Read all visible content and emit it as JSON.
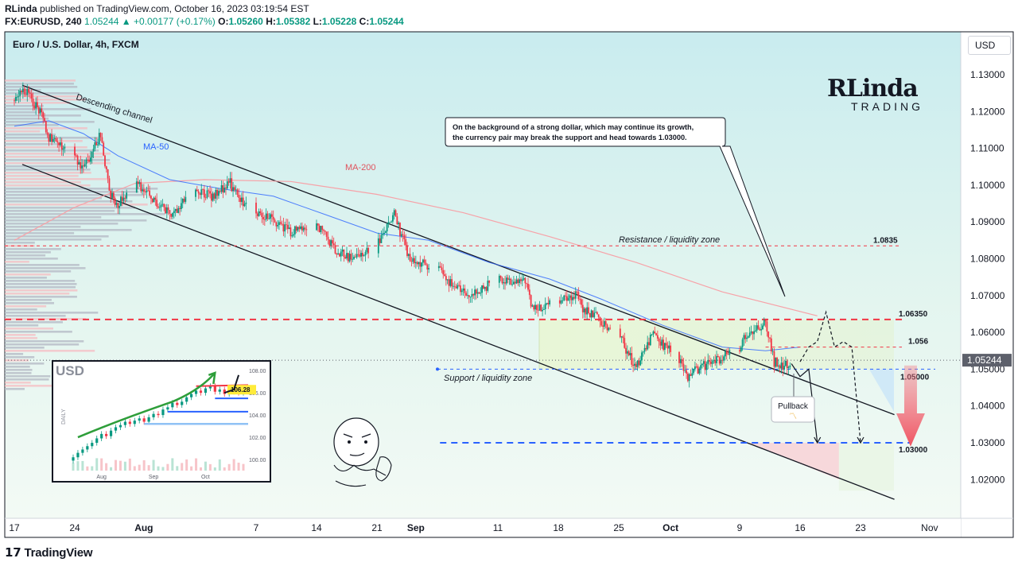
{
  "header": {
    "author": "RLinda",
    "published_text": "published on TradingView.com, October 16, 2023 03:19:54 EST",
    "symbol": "FX:EURUSD, 240",
    "last": "1.05244",
    "arrow": "▲",
    "change": "+0.00177 (+0.17%)",
    "o_label": "O:",
    "o_value": "1.05260",
    "h_label": "H:",
    "h_value": "1.05382",
    "l_label": "L:",
    "l_value": "1.05228",
    "c_label": "C:",
    "c_value": "1.05244"
  },
  "chart_title": "Euro / U.S. Dollar, 4h, FXCM",
  "currency_button": "USD",
  "logo": {
    "main": "RLinda",
    "sub": "TRADING"
  },
  "footer": {
    "brand": "TradingView"
  },
  "colors": {
    "up": "#089981",
    "down": "#f23645",
    "ma50": "#2962ff",
    "ma200": "#f7a2a8",
    "channel": "#131722",
    "resistance": "#f23645",
    "support": "#2962ff",
    "last_price_tag": "#5d606b",
    "chart_bg_top": "#cdeef0",
    "chart_bg_bottom": "#f4fbf6"
  },
  "chart_data": {
    "type": "candlestick",
    "timeframe": "4h",
    "y_axis": {
      "ticks": [
        "1.13000",
        "1.12000",
        "1.11000",
        "1.10000",
        "1.09000",
        "1.08000",
        "1.07000",
        "1.06000",
        "1.05000",
        "1.04000",
        "1.03000",
        "1.02000"
      ],
      "range": [
        1.0135,
        1.1325
      ],
      "current_price": "1.05244",
      "current_price_value": 1.05244
    },
    "x_axis": {
      "ticks": [
        "17",
        "24",
        "Aug",
        "7",
        "14",
        "21",
        "Sep",
        "11",
        "18",
        "25",
        "Oct",
        "9",
        "16",
        "23",
        "Nov"
      ],
      "bold_ticks": [
        "Aug",
        "Sep",
        "Oct"
      ],
      "start_date": "2023-07-17",
      "end_date": "2023-11-01"
    },
    "price_path": [
      {
        "date": "2023-07-17",
        "price": 1.123
      },
      {
        "date": "2023-07-18",
        "price": 1.1265
      },
      {
        "date": "2023-07-20",
        "price": 1.12
      },
      {
        "date": "2023-07-21",
        "price": 1.113
      },
      {
        "date": "2023-07-24",
        "price": 1.108
      },
      {
        "date": "2023-07-25",
        "price": 1.1045
      },
      {
        "date": "2023-07-27",
        "price": 1.114
      },
      {
        "date": "2023-07-28",
        "price": 1.098
      },
      {
        "date": "2023-07-29",
        "price": 1.095
      },
      {
        "date": "2023-07-31",
        "price": 1.101
      },
      {
        "date": "2023-08-02",
        "price": 1.096
      },
      {
        "date": "2023-08-04",
        "price": 1.092
      },
      {
        "date": "2023-08-07",
        "price": 1.0985
      },
      {
        "date": "2023-08-09",
        "price": 1.097
      },
      {
        "date": "2023-08-11",
        "price": 1.1005
      },
      {
        "date": "2023-08-12",
        "price": 1.096
      },
      {
        "date": "2023-08-14",
        "price": 1.093
      },
      {
        "date": "2023-08-16",
        "price": 1.0905
      },
      {
        "date": "2023-08-18",
        "price": 1.0875
      },
      {
        "date": "2023-08-21",
        "price": 1.0895
      },
      {
        "date": "2023-08-23",
        "price": 1.083
      },
      {
        "date": "2023-08-25",
        "price": 1.08
      },
      {
        "date": "2023-08-28",
        "price": 1.0835
      },
      {
        "date": "2023-08-30",
        "price": 1.0925
      },
      {
        "date": "2023-08-31",
        "price": 1.085
      },
      {
        "date": "2023-09-01",
        "price": 1.079
      },
      {
        "date": "2023-09-04",
        "price": 1.078
      },
      {
        "date": "2023-09-06",
        "price": 1.072
      },
      {
        "date": "2023-09-08",
        "price": 1.07
      },
      {
        "date": "2023-09-11",
        "price": 1.0745
      },
      {
        "date": "2023-09-13",
        "price": 1.073
      },
      {
        "date": "2023-09-14",
        "price": 1.075
      },
      {
        "date": "2023-09-15",
        "price": 1.066
      },
      {
        "date": "2023-09-18",
        "price": 1.069
      },
      {
        "date": "2023-09-20",
        "price": 1.0705
      },
      {
        "date": "2023-09-21",
        "price": 1.066
      },
      {
        "date": "2023-09-22",
        "price": 1.065
      },
      {
        "date": "2023-09-25",
        "price": 1.0595
      },
      {
        "date": "2023-09-27",
        "price": 1.05
      },
      {
        "date": "2023-09-28",
        "price": 1.056
      },
      {
        "date": "2023-09-29",
        "price": 1.059
      },
      {
        "date": "2023-10-02",
        "price": 1.053
      },
      {
        "date": "2023-10-03",
        "price": 1.047
      },
      {
        "date": "2023-10-04",
        "price": 1.05
      },
      {
        "date": "2023-10-06",
        "price": 1.052
      },
      {
        "date": "2023-10-09",
        "price": 1.056
      },
      {
        "date": "2023-10-10",
        "price": 1.06
      },
      {
        "date": "2023-10-12",
        "price": 1.0625
      },
      {
        "date": "2023-10-13",
        "price": 1.052
      },
      {
        "date": "2023-10-15",
        "price": 1.0505
      },
      {
        "date": "2023-10-16",
        "price": 1.05244
      }
    ],
    "ma50": [
      {
        "date": "2023-07-17",
        "price": 1.116
      },
      {
        "date": "2023-07-21",
        "price": 1.1175
      },
      {
        "date": "2023-07-25",
        "price": 1.114
      },
      {
        "date": "2023-07-29",
        "price": 1.108
      },
      {
        "date": "2023-08-04",
        "price": 1.1015
      },
      {
        "date": "2023-08-10",
        "price": 1.099
      },
      {
        "date": "2023-08-16",
        "price": 1.097
      },
      {
        "date": "2023-08-22",
        "price": 1.092
      },
      {
        "date": "2023-08-28",
        "price": 1.087
      },
      {
        "date": "2023-09-03",
        "price": 1.085
      },
      {
        "date": "2023-09-10",
        "price": 1.079
      },
      {
        "date": "2023-09-17",
        "price": 1.0745
      },
      {
        "date": "2023-09-23",
        "price": 1.069
      },
      {
        "date": "2023-09-30",
        "price": 1.062
      },
      {
        "date": "2023-10-07",
        "price": 1.056
      },
      {
        "date": "2023-10-12",
        "price": 1.055
      },
      {
        "date": "2023-10-16",
        "price": 1.056
      }
    ],
    "ma200": [
      {
        "date": "2023-07-17",
        "price": 1.085
      },
      {
        "date": "2023-07-24",
        "price": 1.094
      },
      {
        "date": "2023-07-31",
        "price": 1.1005
      },
      {
        "date": "2023-08-08",
        "price": 1.1015
      },
      {
        "date": "2023-08-18",
        "price": 1.101
      },
      {
        "date": "2023-08-28",
        "price": 1.0975
      },
      {
        "date": "2023-09-07",
        "price": 1.0925
      },
      {
        "date": "2023-09-17",
        "price": 1.086
      },
      {
        "date": "2023-09-27",
        "price": 1.079
      },
      {
        "date": "2023-10-07",
        "price": 1.071
      },
      {
        "date": "2023-10-18",
        "price": 1.0645
      }
    ],
    "channel_upper": [
      {
        "date": "2023-07-17",
        "price": 1.128
      },
      {
        "date": "2023-10-26",
        "price": 1.0385
      }
    ],
    "channel_lower": [
      {
        "date": "2023-07-17",
        "price": 1.1065
      },
      {
        "date": "2023-10-26",
        "price": 1.0155
      }
    ],
    "levels": [
      {
        "name": "resistance",
        "price": 1.0835,
        "label": "1.0835"
      },
      {
        "name": "upper",
        "price": 1.0635,
        "label": "1.06350"
      },
      {
        "name": "mid",
        "price": 1.056,
        "label": "1.056"
      },
      {
        "name": "support",
        "price": 1.05,
        "label": "1.05000"
      },
      {
        "name": "target",
        "price": 1.03,
        "label": "1.03000"
      }
    ],
    "projection": [
      {
        "date": "2023-10-16",
        "price": 1.052
      },
      {
        "date": "2023-10-17",
        "price": 1.056
      },
      {
        "date": "2023-10-18",
        "price": 1.0575
      },
      {
        "date": "2023-10-19",
        "price": 1.0655
      },
      {
        "date": "2023-10-20",
        "price": 1.056
      },
      {
        "date": "2023-10-21",
        "price": 1.0575
      },
      {
        "date": "2023-10-22",
        "price": 1.056
      },
      {
        "date": "2023-10-23",
        "price": 1.03
      }
    ],
    "projection2": [
      {
        "date": "2023-10-15",
        "price": 1.0515
      },
      {
        "date": "2023-10-16",
        "price": 1.048
      },
      {
        "date": "2023-10-17",
        "price": 1.05
      },
      {
        "date": "2023-10-18",
        "price": 1.03
      }
    ],
    "annotations": {
      "descending_channel": "Descending channel",
      "ma50": "MA-50",
      "ma200": "MA-200",
      "resistance_zone": "Resistance / liquidity zone",
      "support_zone": "Support / liquidity zone",
      "callout": "On the background of a strong dollar, which may continue its growth, the currency pair may break the support and head towards 1.03000.",
      "pullback": "Pullback"
    },
    "inset": {
      "title": "USD",
      "ylabel": "DAILY",
      "x_ticks": [
        "Aug",
        "Sep",
        "Oct"
      ],
      "y_ticks": [
        "108.00",
        "106.00",
        "104.00",
        "102.00",
        "100.00"
      ],
      "price_label": "106.28",
      "ylim": [
        99.0,
        108.3
      ],
      "closes": [
        100.2,
        100.6,
        100.9,
        101.2,
        101.5,
        101.9,
        102.3,
        102.1,
        102.6,
        102.9,
        103.1,
        103.4,
        103.2,
        103.5,
        103.7,
        103.4,
        103.8,
        104.1,
        104.0,
        104.5,
        104.7,
        105.1,
        104.9,
        105.2,
        105.6,
        105.9,
        106.2,
        106.0,
        106.4,
        106.6,
        106.1,
        106.3,
        105.9,
        106.1,
        106.3,
        106.0,
        106.28
      ],
      "resistance": 106.6,
      "support_levels": [
        105.5,
        104.3,
        103.2
      ]
    },
    "volume_profile": "left-side horizontal histogram"
  }
}
